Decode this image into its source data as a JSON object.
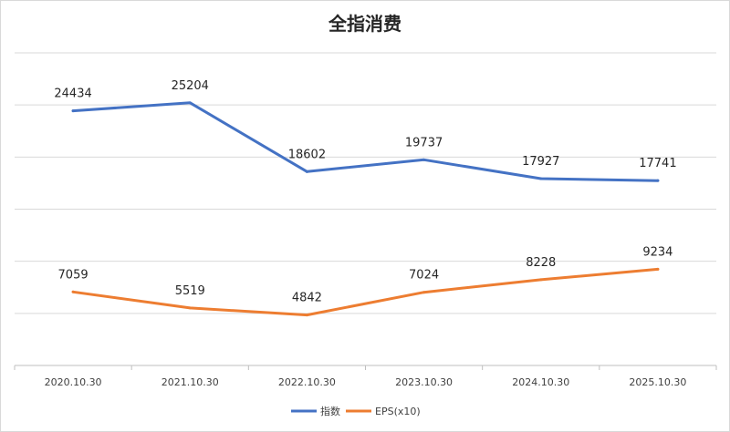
{
  "chart_data": {
    "type": "line",
    "title": "全指消费",
    "categories": [
      "2020.10.30",
      "2021.10.30",
      "2022.10.30",
      "2023.10.30",
      "2024.10.30",
      "2025.10.30"
    ],
    "series": [
      {
        "name": "指数",
        "color": "#4472C4",
        "values": [
          24434,
          25204,
          18602,
          19737,
          17927,
          17741
        ],
        "labels": [
          "24434",
          "25204",
          "18602",
          "19737",
          "17927",
          "17741"
        ]
      },
      {
        "name": "EPS(x10)",
        "color": "#ED7D31",
        "values": [
          7059,
          5519,
          4842,
          7024,
          8228,
          9234
        ],
        "labels": [
          "7059",
          "5519",
          "4842",
          "7024",
          "8228",
          "9234"
        ]
      }
    ],
    "ylim": [
      0,
      30000
    ],
    "y_major_unit": 5000,
    "y_axis_labels_visible": false,
    "grid": true,
    "legend_position": "bottom",
    "data_labels": true
  }
}
